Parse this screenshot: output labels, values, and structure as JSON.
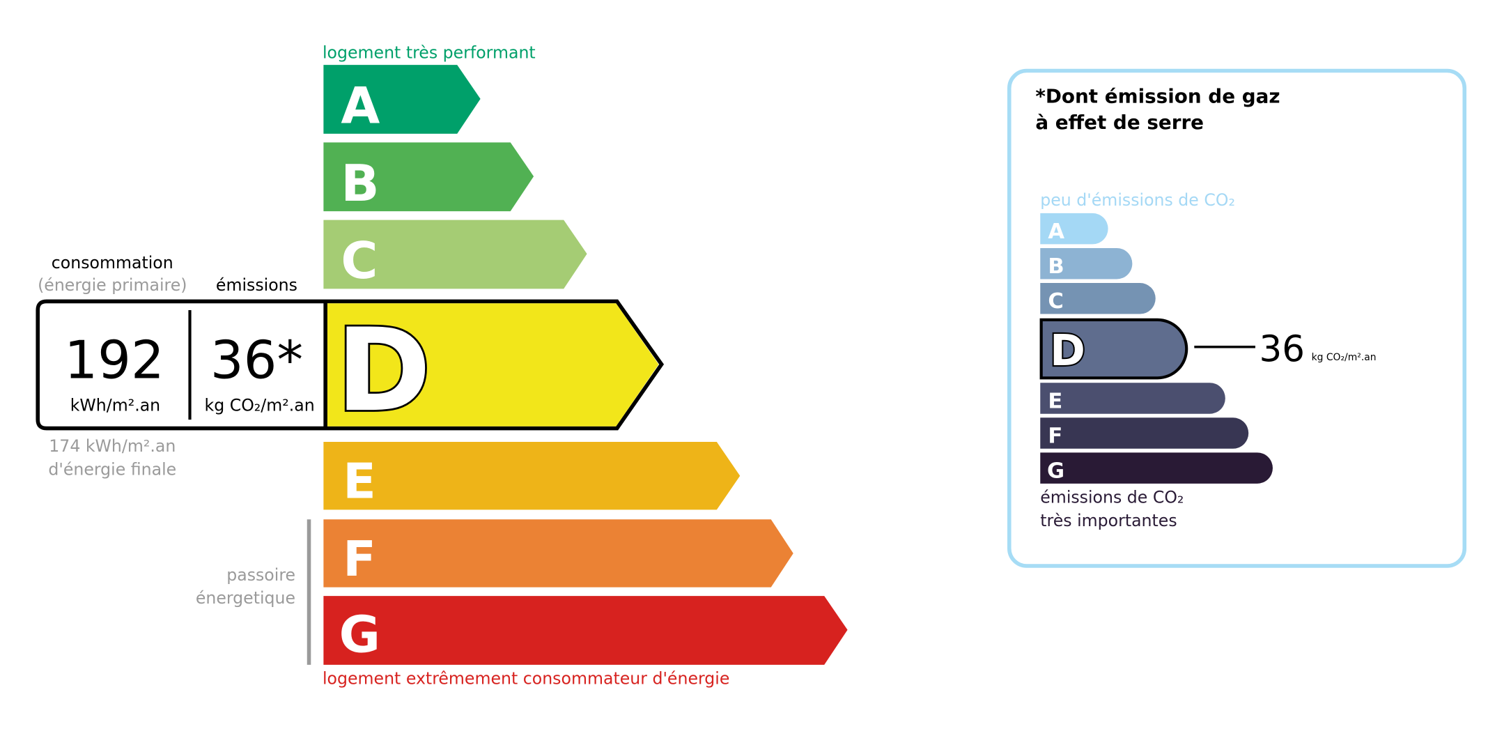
{
  "energy": {
    "top_label": "logement très performant",
    "bottom_label": "logement extrêmement consommateur d'énergie",
    "passoire": [
      "passoire",
      "énergetique"
    ],
    "classes": [
      {
        "letter": "A",
        "color": "#00a06a"
      },
      {
        "letter": "B",
        "color": "#51b153"
      },
      {
        "letter": "C",
        "color": "#a5cc74"
      },
      {
        "letter": "D",
        "color": "#f2e61a"
      },
      {
        "letter": "E",
        "color": "#eeb418"
      },
      {
        "letter": "F",
        "color": "#eb8234"
      },
      {
        "letter": "G",
        "color": "#d7221f"
      }
    ],
    "current_class": "D",
    "consumption_label": "consommation",
    "consumption_sublabel": "(énergie primaire)",
    "emissions_label": "émissions",
    "consumption_value": "192",
    "consumption_unit": "kWh/m².an",
    "emissions_value": "36*",
    "emissions_unit": "kg CO₂/m².an",
    "final_energy_value": "174 kWh/m².an",
    "final_energy_label": "d'énergie finale"
  },
  "ges": {
    "title_line1": "*Dont émission de gaz",
    "title_line2": "à effet de serre",
    "top_label": "peu d'émissions de CO₂",
    "bottom_label_line1": "émissions de CO₂",
    "bottom_label_line2": "très importantes",
    "classes": [
      {
        "letter": "A",
        "color": "#a4d8f5"
      },
      {
        "letter": "B",
        "color": "#8db3d3"
      },
      {
        "letter": "C",
        "color": "#7593b3"
      },
      {
        "letter": "D",
        "color": "#5f6d8e"
      },
      {
        "letter": "E",
        "color": "#4b4f6f"
      },
      {
        "letter": "F",
        "color": "#383653"
      },
      {
        "letter": "G",
        "color": "#291a35"
      }
    ],
    "current_class": "D",
    "value": "36",
    "unit": "kg CO₂/m².an",
    "border_color": "#a6dcf5"
  }
}
